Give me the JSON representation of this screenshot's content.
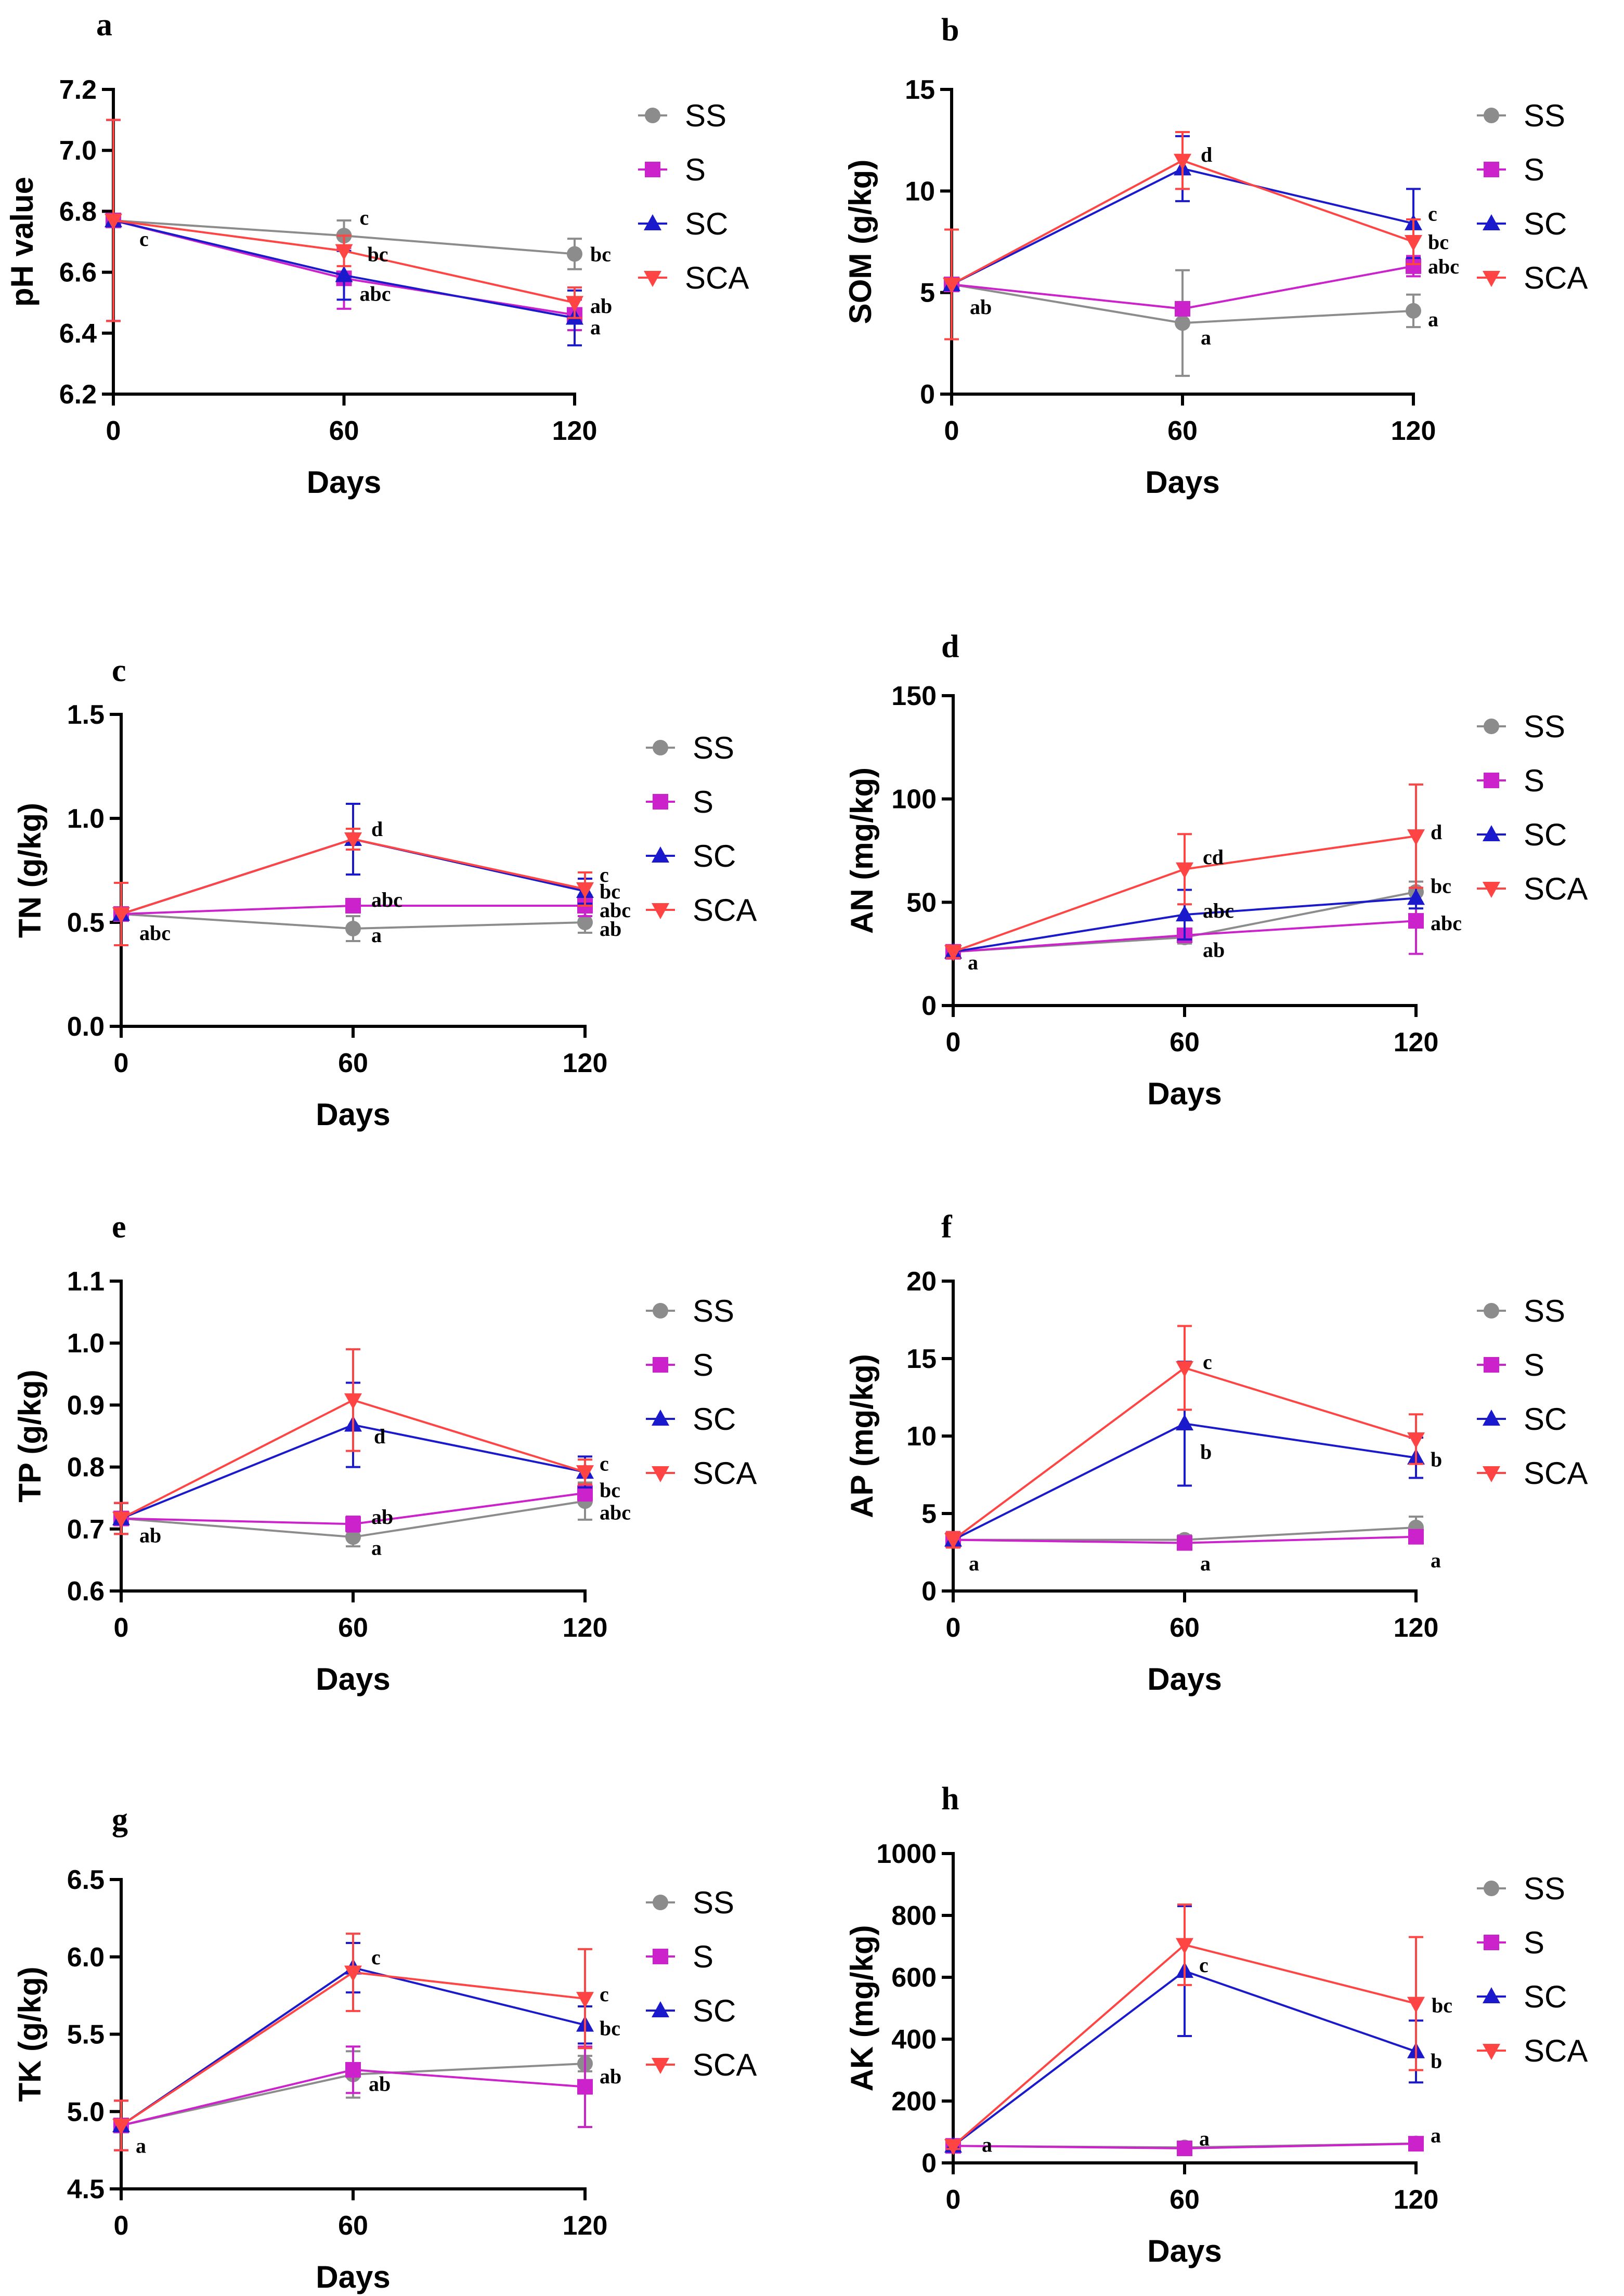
{
  "figure": {
    "xlabel": "Days"
  },
  "legend": {
    "entries": [
      {
        "name": "SS",
        "color": "#8c8c8c",
        "marker": "circle"
      },
      {
        "name": "S",
        "color": "#cc22cc",
        "marker": "square"
      },
      {
        "name": "SC",
        "color": "#1a1acc",
        "marker": "triangle-up"
      },
      {
        "name": "SCA",
        "color": "#ff4444",
        "marker": "triangle-down"
      }
    ]
  },
  "chart_data": [
    {
      "panel": "a",
      "type": "line",
      "title": "",
      "xlabel": "Days",
      "ylabel": "pH value",
      "x": [
        0,
        60,
        120
      ],
      "xticks": [
        "0",
        "60",
        "120"
      ],
      "ylim": [
        6.2,
        7.2
      ],
      "yticks": [
        6.2,
        6.4,
        6.6,
        6.8,
        7.0,
        7.2
      ],
      "ytick_labels": [
        "6.2",
        "6.4",
        "6.6",
        "6.8",
        "7.0",
        "7.2"
      ],
      "series": [
        {
          "name": "SS",
          "values": [
            6.77,
            6.72,
            6.66
          ],
          "errors": [
            0.33,
            0.05,
            0.05
          ]
        },
        {
          "name": "S",
          "values": [
            6.77,
            6.58,
            6.46
          ],
          "errors": [
            0.33,
            0.1,
            0.05
          ]
        },
        {
          "name": "SC",
          "values": [
            6.77,
            6.59,
            6.45
          ],
          "errors": [
            0.33,
            0.08,
            0.09
          ]
        },
        {
          "name": "SCA",
          "values": [
            6.77,
            6.67,
            6.5
          ],
          "errors": [
            0.33,
            0.05,
            0.05
          ]
        }
      ],
      "annotations": [
        {
          "text": "c",
          "x": 0,
          "y": 6.71,
          "dx": 50
        },
        {
          "text": "c",
          "x": 60,
          "y": 6.78,
          "dx": 30
        },
        {
          "text": "bc",
          "x": 60,
          "y": 6.66,
          "dx": 45
        },
        {
          "text": "abc",
          "x": 60,
          "y": 6.53,
          "dx": 30
        },
        {
          "text": "bc",
          "x": 120,
          "y": 6.66,
          "dx": 30
        },
        {
          "text": "ab",
          "x": 120,
          "y": 6.49,
          "dx": 30
        },
        {
          "text": "a",
          "x": 120,
          "y": 6.42,
          "dx": 30
        }
      ]
    },
    {
      "panel": "b",
      "type": "line",
      "title": "",
      "xlabel": "Days",
      "ylabel": "SOM (g/kg)",
      "x": [
        0,
        60,
        120
      ],
      "xticks": [
        "0",
        "60",
        "120"
      ],
      "ylim": [
        0,
        15
      ],
      "yticks": [
        0,
        5,
        10,
        15
      ],
      "ytick_labels": [
        "0",
        "5",
        "10",
        "15"
      ],
      "series": [
        {
          "name": "SS",
          "values": [
            5.4,
            3.5,
            4.1
          ],
          "errors": [
            2.7,
            2.6,
            0.8
          ]
        },
        {
          "name": "S",
          "values": [
            5.4,
            4.2,
            6.3
          ],
          "errors": [
            2.7,
            0.3,
            0.5
          ]
        },
        {
          "name": "SC",
          "values": [
            5.4,
            11.1,
            8.4
          ],
          "errors": [
            2.7,
            1.6,
            1.7
          ]
        },
        {
          "name": "SCA",
          "values": [
            5.4,
            11.5,
            7.5
          ],
          "errors": [
            2.7,
            1.4,
            1.1
          ]
        }
      ],
      "annotations": [
        {
          "text": "ab",
          "x": 0,
          "y": 4.3,
          "dx": 35
        },
        {
          "text": "d",
          "x": 60,
          "y": 11.8,
          "dx": 35
        },
        {
          "text": "a",
          "x": 60,
          "y": 2.8,
          "dx": 35
        },
        {
          "text": "c",
          "x": 120,
          "y": 8.9,
          "dx": 28
        },
        {
          "text": "bc",
          "x": 120,
          "y": 7.5,
          "dx": 28
        },
        {
          "text": "abc",
          "x": 120,
          "y": 6.3,
          "dx": 28
        },
        {
          "text": "a",
          "x": 120,
          "y": 3.7,
          "dx": 28
        }
      ]
    },
    {
      "panel": "c",
      "type": "line",
      "title": "",
      "xlabel": "Days",
      "ylabel": "TN (g/kg)",
      "x": [
        0,
        60,
        120
      ],
      "xticks": [
        "0",
        "60",
        "120"
      ],
      "ylim": [
        0,
        1.5
      ],
      "yticks": [
        0.0,
        0.5,
        1.0,
        1.5
      ],
      "ytick_labels": [
        "0.0",
        "0.5",
        "1.0",
        "1.5"
      ],
      "series": [
        {
          "name": "SS",
          "values": [
            0.54,
            0.47,
            0.5
          ],
          "errors": [
            0.15,
            0.06,
            0.05
          ]
        },
        {
          "name": "S",
          "values": [
            0.54,
            0.58,
            0.58
          ],
          "errors": [
            0.15,
            0.03,
            0.05
          ]
        },
        {
          "name": "SC",
          "values": [
            0.54,
            0.9,
            0.65
          ],
          "errors": [
            0.15,
            0.17,
            0.06
          ]
        },
        {
          "name": "SCA",
          "values": [
            0.54,
            0.9,
            0.66
          ],
          "errors": [
            0.15,
            0.05,
            0.08
          ]
        }
      ],
      "annotations": [
        {
          "text": "abc",
          "x": 0,
          "y": 0.45,
          "dx": 35
        },
        {
          "text": "d",
          "x": 60,
          "y": 0.95,
          "dx": 35
        },
        {
          "text": "abc",
          "x": 60,
          "y": 0.61,
          "dx": 35
        },
        {
          "text": "a",
          "x": 60,
          "y": 0.44,
          "dx": 35
        },
        {
          "text": "c",
          "x": 120,
          "y": 0.73,
          "dx": 28
        },
        {
          "text": "bc",
          "x": 120,
          "y": 0.65,
          "dx": 28
        },
        {
          "text": "abc",
          "x": 120,
          "y": 0.56,
          "dx": 28
        },
        {
          "text": "ab",
          "x": 120,
          "y": 0.47,
          "dx": 28
        }
      ]
    },
    {
      "panel": "d",
      "type": "line",
      "title": "",
      "xlabel": "Days",
      "ylabel": "AN (mg/kg)",
      "x": [
        0,
        60,
        120
      ],
      "xticks": [
        "0",
        "60",
        "120"
      ],
      "ylim": [
        0,
        150
      ],
      "yticks": [
        0,
        50,
        100,
        150
      ],
      "ytick_labels": [
        "0",
        "50",
        "100",
        "150"
      ],
      "series": [
        {
          "name": "SS",
          "values": [
            26,
            33,
            55
          ],
          "errors": [
            3,
            3,
            5
          ]
        },
        {
          "name": "S",
          "values": [
            26,
            34,
            41
          ],
          "errors": [
            3,
            3,
            16
          ]
        },
        {
          "name": "SC",
          "values": [
            26,
            44,
            52
          ],
          "errors": [
            3,
            12,
            5
          ]
        },
        {
          "name": "SCA",
          "values": [
            26,
            66,
            82
          ],
          "errors": [
            3,
            17,
            25
          ]
        }
      ],
      "annotations": [
        {
          "text": "a",
          "x": 0,
          "y": 21,
          "dx": 28
        },
        {
          "text": "cd",
          "x": 60,
          "y": 72,
          "dx": 35
        },
        {
          "text": "abc",
          "x": 60,
          "y": 46,
          "dx": 35
        },
        {
          "text": "ab",
          "x": 60,
          "y": 27,
          "dx": 35
        },
        {
          "text": "d",
          "x": 120,
          "y": 84,
          "dx": 28
        },
        {
          "text": "bc",
          "x": 120,
          "y": 58,
          "dx": 28
        },
        {
          "text": "abc",
          "x": 120,
          "y": 40,
          "dx": 28
        }
      ]
    },
    {
      "panel": "e",
      "type": "line",
      "title": "",
      "xlabel": "Days",
      "ylabel": "TP (g/kg)",
      "x": [
        0,
        60,
        120
      ],
      "xticks": [
        "0",
        "60",
        "120"
      ],
      "ylim": [
        0.6,
        1.1
      ],
      "yticks": [
        0.6,
        0.7,
        0.8,
        0.9,
        1.0,
        1.1
      ],
      "ytick_labels": [
        "0.6",
        "0.7",
        "0.8",
        "0.9",
        "1.0",
        "1.1"
      ],
      "series": [
        {
          "name": "SS",
          "values": [
            0.717,
            0.687,
            0.745
          ],
          "errors": [
            0.025,
            0.015,
            0.03
          ]
        },
        {
          "name": "S",
          "values": [
            0.717,
            0.708,
            0.758
          ],
          "errors": [
            0.025,
            0.012,
            0.012
          ]
        },
        {
          "name": "SC",
          "values": [
            0.717,
            0.868,
            0.792
          ],
          "errors": [
            0.025,
            0.068,
            0.025
          ]
        },
        {
          "name": "SCA",
          "values": [
            0.717,
            0.908,
            0.792
          ],
          "errors": [
            0.025,
            0.082,
            0.02
          ]
        }
      ],
      "annotations": [
        {
          "text": "ab",
          "x": 0,
          "y": 0.69,
          "dx": 35
        },
        {
          "text": "d",
          "x": 60,
          "y": 0.85,
          "dx": 40
        },
        {
          "text": "ab",
          "x": 60,
          "y": 0.72,
          "dx": 35
        },
        {
          "text": "a",
          "x": 60,
          "y": 0.67,
          "dx": 35
        },
        {
          "text": "c",
          "x": 120,
          "y": 0.806,
          "dx": 28
        },
        {
          "text": "bc",
          "x": 120,
          "y": 0.763,
          "dx": 28
        },
        {
          "text": "abc",
          "x": 120,
          "y": 0.727,
          "dx": 28
        }
      ]
    },
    {
      "panel": "f",
      "type": "line",
      "title": "",
      "xlabel": "Days",
      "ylabel": "AP (mg/kg)",
      "x": [
        0,
        60,
        120
      ],
      "xticks": [
        "0",
        "60",
        "120"
      ],
      "ylim": [
        0,
        20
      ],
      "yticks": [
        0,
        5,
        10,
        15,
        20
      ],
      "ytick_labels": [
        "0",
        "5",
        "10",
        "15",
        "20"
      ],
      "series": [
        {
          "name": "SS",
          "values": [
            3.3,
            3.3,
            4.1
          ],
          "errors": [
            0.5,
            0.3,
            0.7
          ]
        },
        {
          "name": "S",
          "values": [
            3.3,
            3.1,
            3.5
          ],
          "errors": [
            0.5,
            0.3,
            0.4
          ]
        },
        {
          "name": "SC",
          "values": [
            3.3,
            10.8,
            8.6
          ],
          "errors": [
            0.5,
            4.0,
            1.3
          ]
        },
        {
          "name": "SCA",
          "values": [
            3.3,
            14.4,
            9.8
          ],
          "errors": [
            0.5,
            2.7,
            1.6
          ]
        }
      ],
      "annotations": [
        {
          "text": "a",
          "x": 0,
          "y": 1.8,
          "dx": 30
        },
        {
          "text": "c",
          "x": 60,
          "y": 14.8,
          "dx": 35
        },
        {
          "text": "b",
          "x": 60,
          "y": 9.0,
          "dx": 30
        },
        {
          "text": "a",
          "x": 60,
          "y": 1.8,
          "dx": 30
        },
        {
          "text": "b",
          "x": 120,
          "y": 8.5,
          "dx": 28
        },
        {
          "text": "a",
          "x": 120,
          "y": 2.0,
          "dx": 28
        }
      ]
    },
    {
      "panel": "g",
      "type": "line",
      "title": "",
      "xlabel": "Days",
      "ylabel": "TK (g/kg)",
      "x": [
        0,
        60,
        120
      ],
      "xticks": [
        "0",
        "60",
        "120"
      ],
      "ylim": [
        4.5,
        6.5
      ],
      "yticks": [
        4.5,
        5.0,
        5.5,
        6.0,
        6.5
      ],
      "ytick_labels": [
        "4.5",
        "5.0",
        "5.5",
        "6.0",
        "6.5"
      ],
      "series": [
        {
          "name": "SS",
          "values": [
            4.91,
            5.24,
            5.31
          ],
          "errors": [
            0.16,
            0.15,
            0.05
          ]
        },
        {
          "name": "S",
          "values": [
            4.91,
            5.27,
            5.16
          ],
          "errors": [
            0.16,
            0.15,
            0.26
          ]
        },
        {
          "name": "SC",
          "values": [
            4.91,
            5.93,
            5.56
          ],
          "errors": [
            0.16,
            0.16,
            0.12
          ]
        },
        {
          "name": "SCA",
          "values": [
            4.91,
            5.9,
            5.73
          ],
          "errors": [
            0.16,
            0.25,
            0.32
          ]
        }
      ],
      "annotations": [
        {
          "text": "a",
          "x": 0,
          "y": 4.78,
          "dx": 28
        },
        {
          "text": "c",
          "x": 60,
          "y": 6.0,
          "dx": 35
        },
        {
          "text": "ab",
          "x": 60,
          "y": 5.18,
          "dx": 30
        },
        {
          "text": "c",
          "x": 120,
          "y": 5.76,
          "dx": 28
        },
        {
          "text": "bc",
          "x": 120,
          "y": 5.54,
          "dx": 28
        },
        {
          "text": "ab",
          "x": 120,
          "y": 5.23,
          "dx": 28
        }
      ]
    },
    {
      "panel": "h",
      "type": "line",
      "title": "",
      "xlabel": "Days",
      "ylabel": "AK (mg/kg)",
      "x": [
        0,
        60,
        120
      ],
      "xticks": [
        "0",
        "60",
        "120"
      ],
      "ylim": [
        0,
        1000
      ],
      "yticks": [
        0,
        200,
        400,
        600,
        800,
        1000
      ],
      "ytick_labels": [
        "0",
        "200",
        "400",
        "600",
        "800",
        "1000"
      ],
      "series": [
        {
          "name": "SS",
          "values": [
            55,
            50,
            63
          ],
          "errors": [
            10,
            8,
            10
          ]
        },
        {
          "name": "S",
          "values": [
            55,
            47,
            62
          ],
          "errors": [
            10,
            8,
            10
          ]
        },
        {
          "name": "SC",
          "values": [
            55,
            620,
            360
          ],
          "errors": [
            10,
            210,
            100
          ]
        },
        {
          "name": "SCA",
          "values": [
            55,
            705,
            515
          ],
          "errors": [
            10,
            130,
            215
          ]
        }
      ],
      "annotations": [
        {
          "text": "a",
          "x": 0,
          "y": 60,
          "dx": 55
        },
        {
          "text": "c",
          "x": 60,
          "y": 640,
          "dx": 28
        },
        {
          "text": "a",
          "x": 60,
          "y": 80,
          "dx": 28
        },
        {
          "text": "bc",
          "x": 120,
          "y": 510,
          "dx": 30
        },
        {
          "text": "b",
          "x": 120,
          "y": 330,
          "dx": 28
        },
        {
          "text": "a",
          "x": 120,
          "y": 90,
          "dx": 28
        }
      ]
    }
  ]
}
